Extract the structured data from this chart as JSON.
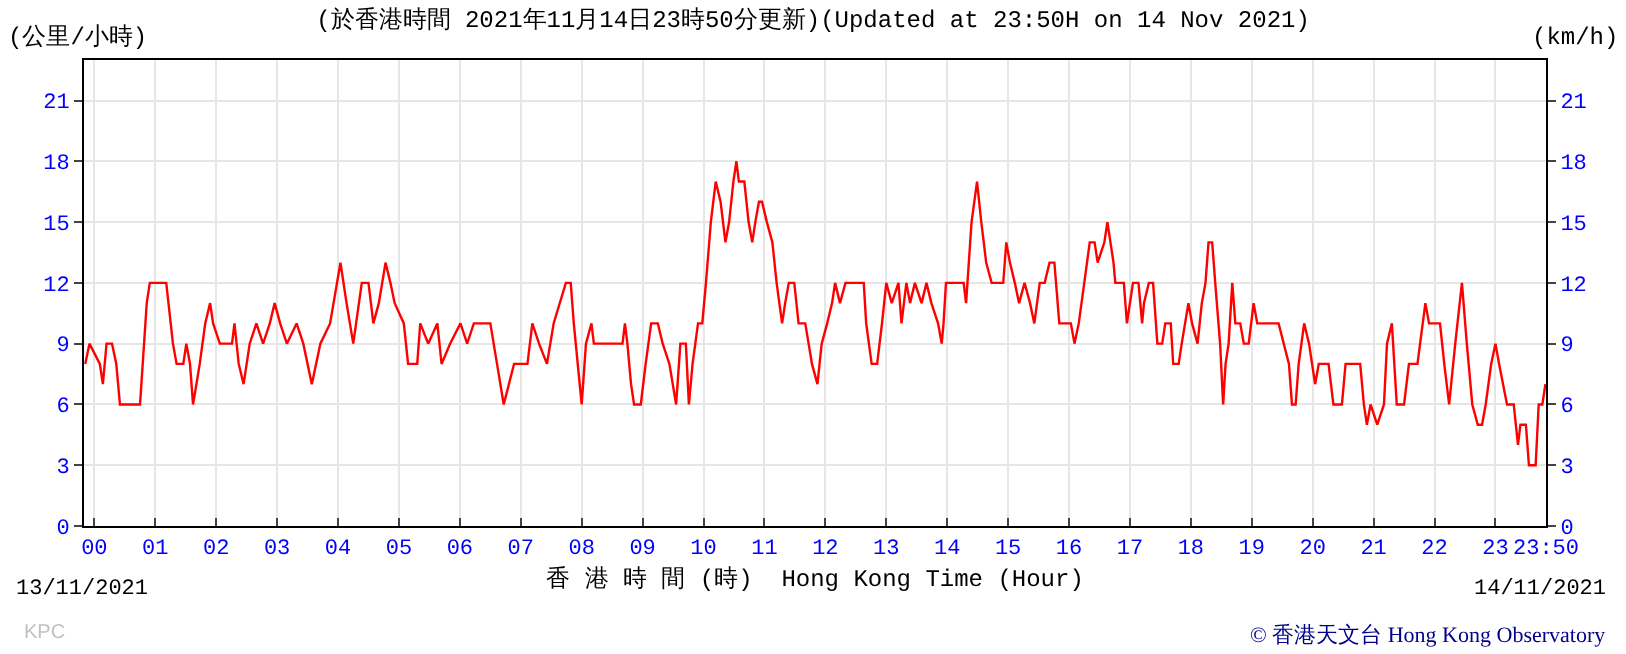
{
  "chart_data": {
    "type": "line",
    "title": "(於香港時間 2021年11月14日23時50分更新)(Updated at 23:50H on 14 Nov 2021)",
    "xlabel": "香 港 時 間 (時)  Hong Kong Time (Hour)",
    "annotations": [
      "(公里/小時)",
      "(km/h)",
      "13/11/2021",
      "14/11/2021",
      "KPC",
      "© 香港天文台 Hong Kong Observatory"
    ],
    "xlim": [
      -0.17,
      23.83
    ],
    "xticks": [
      {
        "value": 0,
        "label": "00"
      },
      {
        "value": 1,
        "label": "01"
      },
      {
        "value": 2,
        "label": "02"
      },
      {
        "value": 3,
        "label": "03"
      },
      {
        "value": 4,
        "label": "04"
      },
      {
        "value": 5,
        "label": "05"
      },
      {
        "value": 6,
        "label": "06"
      },
      {
        "value": 7,
        "label": "07"
      },
      {
        "value": 8,
        "label": "08"
      },
      {
        "value": 9,
        "label": "09"
      },
      {
        "value": 10,
        "label": "10"
      },
      {
        "value": 11,
        "label": "11"
      },
      {
        "value": 12,
        "label": "12"
      },
      {
        "value": 13,
        "label": "13"
      },
      {
        "value": 14,
        "label": "14"
      },
      {
        "value": 15,
        "label": "15"
      },
      {
        "value": 16,
        "label": "16"
      },
      {
        "value": 17,
        "label": "17"
      },
      {
        "value": 18,
        "label": "18"
      },
      {
        "value": 19,
        "label": "19"
      },
      {
        "value": 20,
        "label": "20"
      },
      {
        "value": 21,
        "label": "21"
      },
      {
        "value": 22,
        "label": "22"
      },
      {
        "value": 23,
        "label": "23"
      },
      {
        "value": 23.83,
        "label": "23:50"
      }
    ],
    "ylim": [
      0,
      23
    ],
    "yticks": [
      0,
      3,
      6,
      9,
      12,
      15,
      18,
      21
    ],
    "y2lim": [
      0,
      23
    ],
    "y2ticks": [
      0,
      3,
      6,
      9,
      12,
      15,
      18,
      21
    ],
    "grid": true,
    "marker": "none",
    "line_style": "solid",
    "series": [
      {
        "color": "#ff0000",
        "x": [
          -0.15,
          -0.08,
          0.09,
          0.14,
          0.2,
          0.29,
          0.36,
          0.42,
          0.75,
          0.86,
          0.91,
          1.18,
          1.29,
          1.35,
          1.46,
          1.51,
          1.57,
          1.62,
          1.73,
          1.82,
          1.9,
          1.95,
          2.06,
          2.26,
          2.3,
          2.37,
          2.45,
          2.55,
          2.66,
          2.77,
          2.88,
          2.96,
          3.05,
          3.16,
          3.32,
          3.43,
          3.57,
          3.71,
          3.87,
          4.04,
          4.14,
          4.25,
          4.39,
          4.5,
          4.58,
          4.67,
          4.78,
          4.86,
          4.93,
          5.08,
          5.15,
          5.3,
          5.35,
          5.48,
          5.63,
          5.7,
          5.84,
          6.01,
          6.12,
          6.23,
          6.5,
          6.61,
          6.72,
          6.89,
          7.11,
          7.19,
          7.3,
          7.43,
          7.54,
          7.74,
          7.82,
          7.87,
          8.0,
          8.07,
          8.16,
          8.2,
          8.67,
          8.71,
          8.75,
          8.81,
          8.86,
          8.97,
          9.05,
          9.14,
          9.25,
          9.33,
          9.44,
          9.55,
          9.62,
          9.71,
          9.76,
          9.82,
          9.91,
          9.98,
          10.04,
          10.12,
          10.2,
          10.28,
          10.36,
          10.42,
          10.49,
          10.54,
          10.58,
          10.67,
          10.74,
          10.8,
          10.85,
          10.91,
          10.96,
          11.04,
          11.13,
          11.2,
          11.29,
          11.34,
          11.4,
          11.49,
          11.56,
          11.67,
          11.78,
          11.87,
          11.94,
          12.03,
          12.11,
          12.16,
          12.24,
          12.33,
          12.63,
          12.67,
          12.76,
          12.85,
          12.93,
          13.0,
          13.09,
          13.2,
          13.25,
          13.33,
          13.39,
          13.47,
          13.58,
          13.66,
          13.74,
          13.85,
          13.91,
          13.94,
          13.98,
          14.27,
          14.31,
          14.4,
          14.49,
          14.56,
          14.64,
          14.73,
          14.92,
          14.97,
          15.03,
          15.11,
          15.18,
          15.27,
          15.36,
          15.43,
          15.52,
          15.6,
          15.68,
          15.76,
          15.84,
          16.03,
          16.09,
          16.16,
          16.25,
          16.34,
          16.42,
          16.47,
          16.58,
          16.63,
          16.73,
          16.76,
          16.9,
          16.95,
          17.0,
          17.05,
          17.14,
          17.2,
          17.23,
          17.31,
          17.38,
          17.45,
          17.53,
          17.58,
          17.67,
          17.71,
          17.8,
          17.85,
          17.96,
          18.02,
          18.11,
          18.18,
          18.24,
          18.29,
          18.35,
          18.4,
          18.48,
          18.53,
          18.57,
          18.62,
          18.68,
          18.73,
          18.81,
          18.87,
          18.95,
          19.03,
          19.09,
          19.44,
          19.61,
          19.66,
          19.72,
          19.77,
          19.86,
          19.94,
          20.04,
          20.1,
          20.26,
          20.34,
          20.48,
          20.54,
          20.78,
          20.84,
          20.89,
          20.95,
          21.06,
          21.17,
          21.22,
          21.3,
          21.38,
          21.5,
          21.58,
          21.72,
          21.85,
          21.91,
          22.09,
          22.16,
          22.24,
          22.34,
          22.45,
          22.53,
          22.62,
          22.71,
          22.78,
          22.84,
          22.93,
          23.0,
          23.06,
          23.19,
          23.3,
          23.37,
          23.41,
          23.5,
          23.55,
          23.66,
          23.71,
          23.77,
          23.82
        ],
        "values": [
          8,
          9,
          8,
          7,
          9,
          9,
          8,
          6,
          6,
          11,
          12,
          12,
          9,
          8,
          8,
          9,
          8,
          6,
          8,
          10,
          11,
          10,
          9,
          9,
          10,
          8,
          7,
          9,
          10,
          9,
          10,
          11,
          10,
          9,
          10,
          9,
          7,
          9,
          10,
          13,
          11,
          9,
          12,
          12,
          10,
          11,
          13,
          12,
          11,
          10,
          8,
          8,
          10,
          9,
          10,
          8,
          9,
          10,
          9,
          10,
          10,
          8,
          6,
          8,
          8,
          10,
          9,
          8,
          10,
          12,
          12,
          10,
          6,
          9,
          10,
          9,
          9,
          10,
          9,
          7,
          6,
          6,
          8,
          10,
          10,
          9,
          8,
          6,
          9,
          9,
          6,
          8,
          10,
          10,
          12,
          15,
          17,
          16,
          14,
          15,
          17,
          18,
          17,
          17,
          15,
          14,
          15,
          16,
          16,
          15,
          14,
          12,
          10,
          11,
          12,
          12,
          10,
          10,
          8,
          7,
          9,
          10,
          11,
          12,
          11,
          12,
          12,
          10,
          8,
          8,
          10,
          12,
          11,
          12,
          10,
          12,
          11,
          12,
          11,
          12,
          11,
          10,
          9,
          10,
          12,
          12,
          11,
          15,
          17,
          15,
          13,
          12,
          12,
          14,
          13,
          12,
          11,
          12,
          11,
          10,
          12,
          12,
          13,
          13,
          10,
          10,
          9,
          10,
          12,
          14,
          14,
          13,
          14,
          15,
          13,
          12,
          12,
          10,
          11,
          12,
          12,
          10,
          11,
          12,
          12,
          9,
          9,
          10,
          10,
          8,
          8,
          9,
          11,
          10,
          9,
          11,
          12,
          14,
          14,
          12,
          9,
          6,
          8,
          9,
          12,
          10,
          10,
          9,
          9,
          11,
          10,
          10,
          8,
          6,
          6,
          8,
          10,
          9,
          7,
          8,
          8,
          6,
          6,
          8,
          8,
          6,
          5,
          6,
          5,
          6,
          9,
          10,
          6,
          6,
          8,
          8,
          11,
          10,
          10,
          8,
          6,
          9,
          12,
          9,
          6,
          5,
          5,
          6,
          8,
          9,
          8,
          6,
          6,
          4,
          5,
          5,
          3,
          3,
          6,
          6,
          7
        ]
      }
    ]
  }
}
